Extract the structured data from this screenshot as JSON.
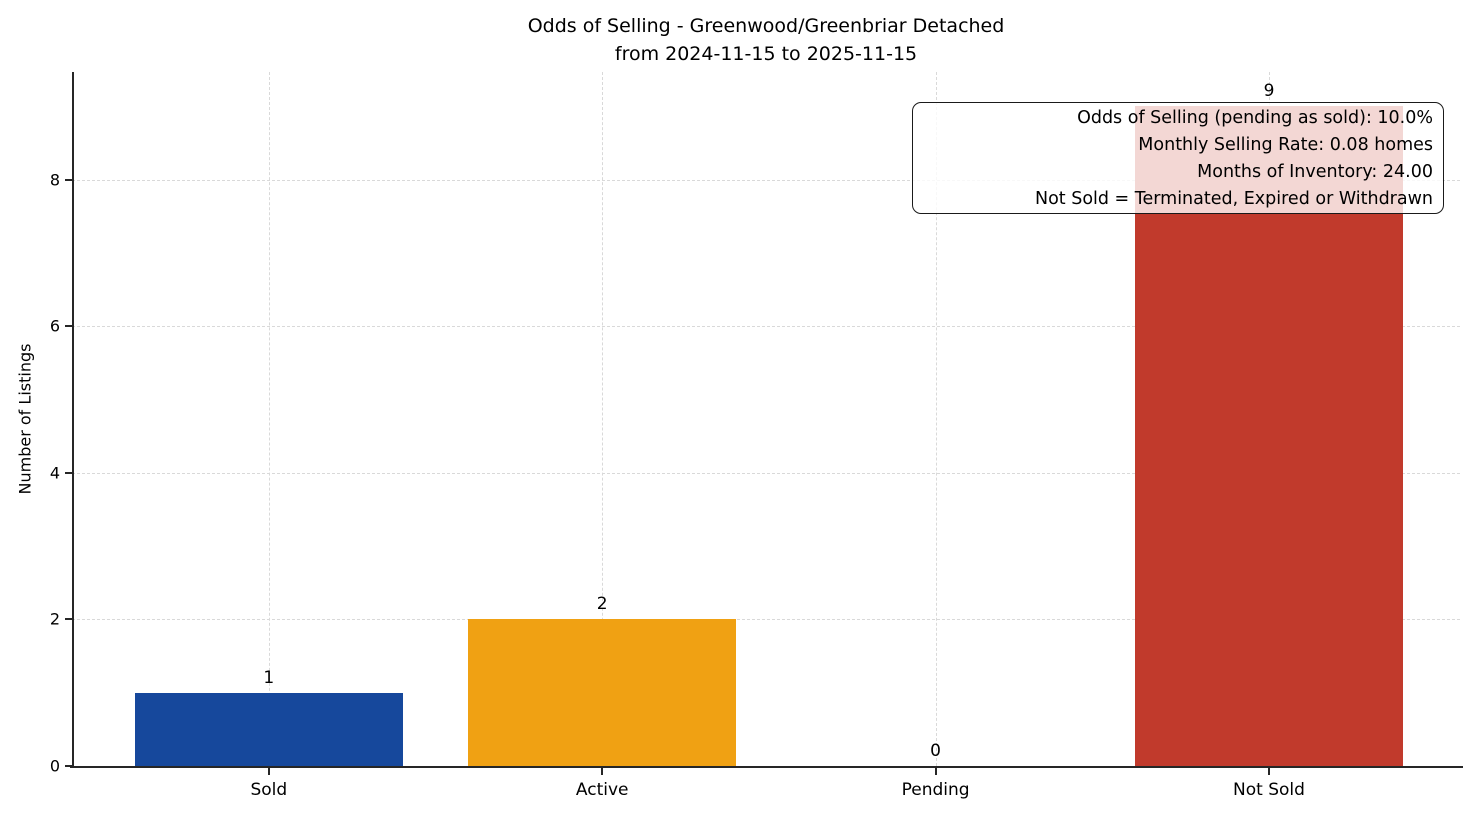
{
  "chart_data": {
    "type": "bar",
    "title": "Odds of Selling - Greenwood/Greenbriar Detached\nfrom 2024-11-15 to 2025-11-15",
    "title_line1": "Odds of Selling - Greenwood/Greenbriar Detached",
    "title_line2": "from 2024-11-15 to 2025-11-15",
    "xlabel": "",
    "ylabel": "Number of Listings",
    "categories": [
      "Sold",
      "Active",
      "Pending",
      "Not Sold"
    ],
    "values": [
      1,
      2,
      0,
      9
    ],
    "bar_colors": [
      "#16489c",
      "#f0a113",
      "#c13a2c",
      "#c13a2c"
    ],
    "value_labels": [
      "1",
      "2",
      "0",
      "9"
    ],
    "yticks": [
      0,
      2,
      4,
      6,
      8
    ],
    "ylim": [
      0,
      9.46
    ],
    "grid": "dashed, both axes",
    "legend": "none",
    "annotation_lines": [
      "Odds of Selling (pending as sold): 10.0%",
      "Monthly Selling Rate: 0.08 homes",
      "Months of Inventory: 24.00",
      "Not Sold = Terminated, Expired or Withdrawn"
    ],
    "annotation_position": "top-right"
  },
  "colors": {
    "sold_bar": "#16489c",
    "active_bar": "#f0a113",
    "pending_bar": "#c13a2c",
    "not_sold_bar": "#c13a2c",
    "spine": "#262626",
    "grid": "#d9d9d9",
    "annotation_border": "#1a1a1a",
    "annotation_bg": "rgba(255,255,255,0.8)"
  }
}
